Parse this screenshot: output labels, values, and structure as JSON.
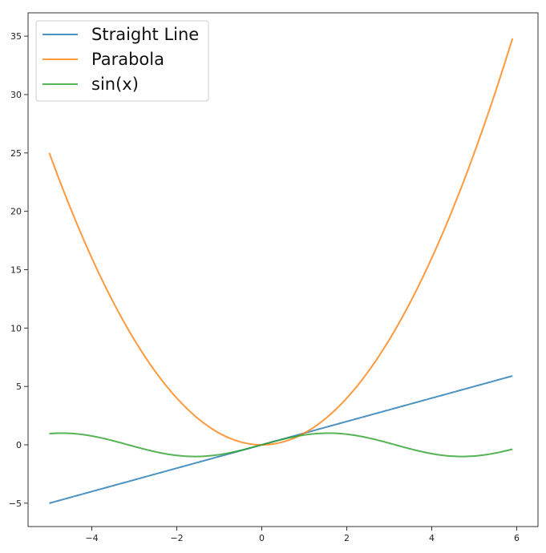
{
  "chart_data": {
    "type": "line",
    "title": "",
    "xlabel": "",
    "ylabel": "",
    "xlim": [
      -5.5,
      6.5
    ],
    "ylim": [
      -7,
      37
    ],
    "xticks": [
      -4,
      -2,
      0,
      2,
      4,
      6
    ],
    "yticks": [
      -5,
      0,
      5,
      10,
      15,
      20,
      25,
      30,
      35
    ],
    "x_tick_labels": [
      "−4",
      "−2",
      "0",
      "2",
      "4",
      "6"
    ],
    "y_tick_labels": [
      "−5",
      "0",
      "5",
      "10",
      "15",
      "20",
      "25",
      "30",
      "35"
    ],
    "grid": false,
    "legend_position": "top-left",
    "x_range": [
      -5,
      5.9
    ],
    "series": [
      {
        "name": "Straight Line",
        "function": "x",
        "color": "#1f77b4"
      },
      {
        "name": "Parabola",
        "function": "x^2",
        "color": "#ff7f0e"
      },
      {
        "name": "sin(x)",
        "function": "sin(x)",
        "color": "#2ca02c"
      }
    ]
  }
}
